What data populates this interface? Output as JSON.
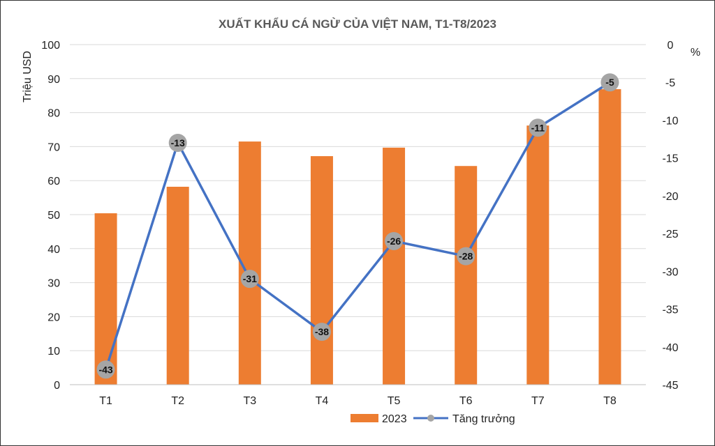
{
  "chart_data": {
    "type": "bar+line",
    "title": "XUẤT KHẨU CÁ NGỪ CỦA VIỆT NAM, T1-T8/2023",
    "categories": [
      "T1",
      "T2",
      "T3",
      "T4",
      "T5",
      "T6",
      "T7",
      "T8"
    ],
    "ylabel_left": "Triệu USD",
    "ylabel_right": "%",
    "ylim_left": [
      0,
      100
    ],
    "yticks_left": [
      0,
      10,
      20,
      30,
      40,
      50,
      60,
      70,
      80,
      90,
      100
    ],
    "ylim_right": [
      -45,
      0
    ],
    "yticks_right": [
      0,
      -5,
      -10,
      -15,
      -20,
      -25,
      -30,
      -35,
      -40,
      -45
    ],
    "grid": true,
    "legend_position": "bottom",
    "series": [
      {
        "name": "2023",
        "type": "bar",
        "axis": "left",
        "color": "#ED7D31",
        "values": [
          50.4,
          58.2,
          71.5,
          67.2,
          69.7,
          64.3,
          76.2,
          86.9
        ]
      },
      {
        "name": "Tăng trưởng",
        "type": "line",
        "axis": "right",
        "color": "#4472C4",
        "marker_color": "#A5A5A5",
        "values": [
          -43,
          -13,
          -31,
          -38,
          -26,
          -28,
          -11,
          -5
        ],
        "data_labels": [
          "-43",
          "-13",
          "-31",
          "-38",
          "-26",
          "-28",
          "-11",
          "-5"
        ]
      }
    ]
  }
}
